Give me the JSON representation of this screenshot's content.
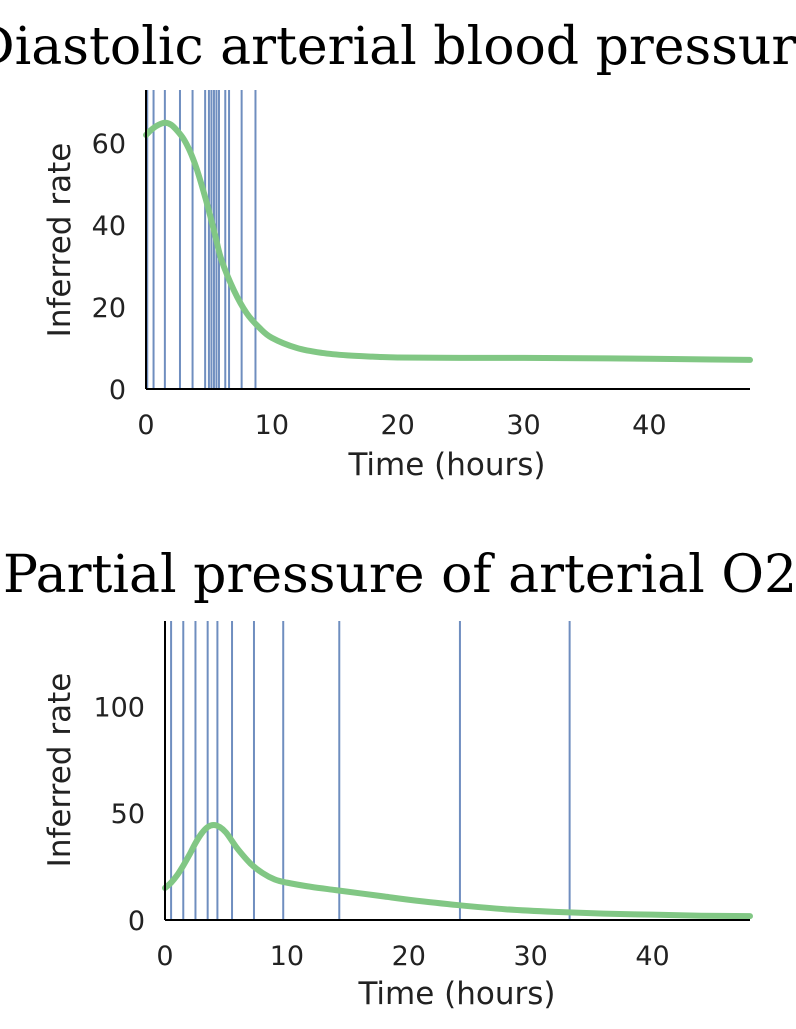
{
  "colors": {
    "curve": "#81c784",
    "event_line": "#4c72b0",
    "axis": "#000000",
    "text": "#222222"
  },
  "chart_data": [
    {
      "type": "line",
      "title": "Diastolic arterial blood pressure",
      "xlabel": "Time (hours)",
      "ylabel": "Inferred rate",
      "xlim": [
        0,
        48
      ],
      "ylim": [
        0,
        73
      ],
      "xticks": [
        0,
        10,
        20,
        30,
        40
      ],
      "yticks": [
        0,
        20,
        40,
        60
      ],
      "grid": false,
      "series": [
        {
          "x": [
            0,
            0.5,
            1,
            1.5,
            2,
            2.5,
            3,
            3.5,
            4,
            4.5,
            5,
            5.5,
            6,
            7,
            8,
            9,
            10,
            12,
            14,
            16,
            18,
            20,
            25,
            30,
            35,
            40,
            45,
            48
          ],
          "y": [
            62,
            63.5,
            64.5,
            65,
            64.5,
            63,
            61,
            58,
            54,
            49,
            43.5,
            37.5,
            31.5,
            24,
            18.5,
            15,
            12.5,
            10,
            8.8,
            8.2,
            7.9,
            7.7,
            7.6,
            7.6,
            7.5,
            7.4,
            7.2,
            7.1
          ]
        }
      ],
      "event_times": [
        0.1,
        0.6,
        1.5,
        2.7,
        3.7,
        4.7,
        5.0,
        5.2,
        5.4,
        5.6,
        5.8,
        6.3,
        6.6,
        7.6,
        8.7
      ]
    },
    {
      "type": "line",
      "title": "Partial pressure of arterial O2",
      "xlabel": "Time (hours)",
      "ylabel": "Inferred rate",
      "xlim": [
        0,
        48
      ],
      "ylim": [
        0,
        140
      ],
      "xticks": [
        0,
        10,
        20,
        30,
        40
      ],
      "yticks": [
        0,
        50,
        100
      ],
      "grid": false,
      "series": [
        {
          "x": [
            0,
            0.5,
            1,
            1.5,
            2,
            2.5,
            3,
            3.5,
            4,
            4.5,
            5,
            5.5,
            6,
            7,
            8,
            9,
            10,
            12,
            14,
            16,
            18,
            20,
            24,
            28,
            32,
            36,
            40,
            44,
            48
          ],
          "y": [
            15,
            17.5,
            21,
            25.5,
            30.5,
            36,
            40.5,
            43.5,
            44.5,
            43.5,
            41,
            37,
            33,
            26.5,
            22,
            19,
            17.5,
            15.5,
            14,
            12.5,
            11,
            9.5,
            7,
            5,
            3.8,
            3,
            2.5,
            2,
            1.8
          ]
        }
      ],
      "event_times": [
        0.5,
        1.5,
        2.5,
        3.5,
        4.3,
        5.5,
        7.3,
        9.7,
        14.3,
        24.2,
        33.2
      ]
    }
  ]
}
